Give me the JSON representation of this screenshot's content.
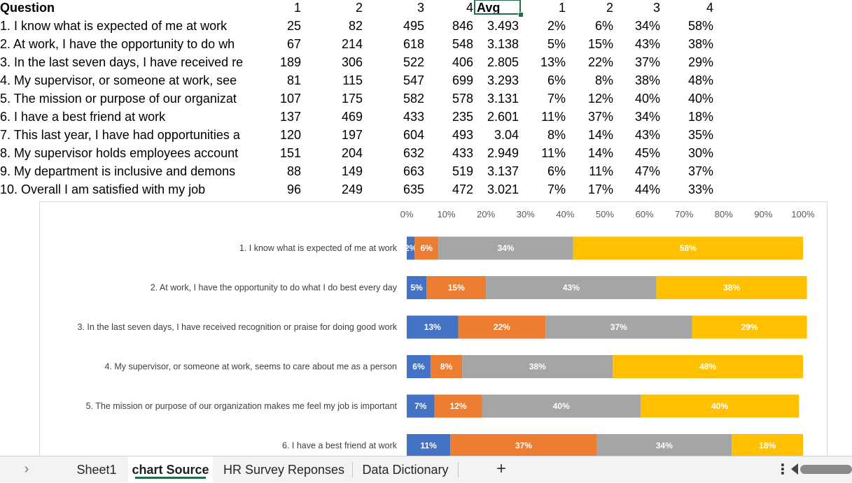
{
  "table": {
    "headers": [
      "Question",
      "1",
      "2",
      "3",
      "4",
      "Avg",
      "1",
      "2",
      "3",
      "4"
    ],
    "rows": [
      {
        "q": "1. I know what is expected of me at work",
        "c1": "25",
        "c2": "82",
        "c3": "495",
        "c4": "846",
        "avg": "3.493",
        "p1": "2%",
        "p2": "6%",
        "p3": "34%",
        "p4": "58%"
      },
      {
        "q": "2. At work, I have the opportunity to do wh",
        "c1": "67",
        "c2": "214",
        "c3": "618",
        "c4": "548",
        "avg": "3.138",
        "p1": "5%",
        "p2": "15%",
        "p3": "43%",
        "p4": "38%"
      },
      {
        "q": "3. In the last seven days, I have received re",
        "c1": "189",
        "c2": "306",
        "c3": "522",
        "c4": "406",
        "avg": "2.805",
        "p1": "13%",
        "p2": "22%",
        "p3": "37%",
        "p4": "29%"
      },
      {
        "q": "4. My supervisor, or someone at work, see",
        "c1": "81",
        "c2": "115",
        "c3": "547",
        "c4": "699",
        "avg": "3.293",
        "p1": "6%",
        "p2": "8%",
        "p3": "38%",
        "p4": "48%"
      },
      {
        "q": "5. The mission or purpose of our organizat",
        "c1": "107",
        "c2": "175",
        "c3": "582",
        "c4": "578",
        "avg": "3.131",
        "p1": "7%",
        "p2": "12%",
        "p3": "40%",
        "p4": "40%"
      },
      {
        "q": "6. I have a best friend at work",
        "c1": "137",
        "c2": "469",
        "c3": "433",
        "c4": "235",
        "avg": "2.601",
        "p1": "11%",
        "p2": "37%",
        "p3": "34%",
        "p4": "18%"
      },
      {
        "q": "7. This last year, I have had opportunities a",
        "c1": "120",
        "c2": "197",
        "c3": "604",
        "c4": "493",
        "avg": "3.04",
        "p1": "8%",
        "p2": "14%",
        "p3": "43%",
        "p4": "35%"
      },
      {
        "q": "8. My supervisor holds employees account",
        "c1": "151",
        "c2": "204",
        "c3": "632",
        "c4": "433",
        "avg": "2.949",
        "p1": "11%",
        "p2": "14%",
        "p3": "45%",
        "p4": "30%"
      },
      {
        "q": "9. My department is inclusive and demons",
        "c1": "88",
        "c2": "149",
        "c3": "663",
        "c4": "519",
        "avg": "3.137",
        "p1": "6%",
        "p2": "11%",
        "p3": "47%",
        "p4": "37%"
      },
      {
        "q": "10. Overall I am satisfied with my job",
        "c1": "96",
        "c2": "249",
        "c3": "635",
        "c4": "472",
        "avg": "3.021",
        "p1": "7%",
        "p2": "17%",
        "p3": "44%",
        "p4": "33%"
      }
    ]
  },
  "chart_data": {
    "type": "bar",
    "orientation": "horizontal",
    "stacked": "100%",
    "title": "",
    "xlabel": "",
    "ylabel": "",
    "xlim": [
      0,
      100
    ],
    "x_ticks": [
      "0%",
      "10%",
      "20%",
      "30%",
      "40%",
      "50%",
      "60%",
      "70%",
      "80%",
      "90%",
      "100%"
    ],
    "x_tick_position": "top",
    "grid": false,
    "legend": "none",
    "categories": [
      "1. I know what is expected of me at work",
      "2. At work, I have the opportunity to do what I do best every day",
      "3. In the last seven days, I have received recognition or praise for doing good work",
      "4. My supervisor, or someone at work, seems to care about me as a person",
      "5. The mission or purpose of our organization makes me feel my job is important",
      "6. I have a best friend at work"
    ],
    "series": [
      {
        "color": "#4472c4",
        "values": [
          2,
          5,
          13,
          6,
          7,
          11
        ],
        "labels": [
          "2%",
          "5%",
          "13%",
          "6%",
          "7%",
          "11%"
        ]
      },
      {
        "color": "#ed7d31",
        "values": [
          6,
          15,
          22,
          8,
          12,
          37
        ],
        "labels": [
          "6%",
          "15%",
          "22%",
          "8%",
          "12%",
          "37%"
        ]
      },
      {
        "color": "#a5a5a5",
        "values": [
          34,
          43,
          37,
          38,
          40,
          34
        ],
        "labels": [
          "34%",
          "43%",
          "37%",
          "38%",
          "40%",
          "34%"
        ]
      },
      {
        "color": "#ffc000",
        "values": [
          58,
          38,
          29,
          48,
          40,
          18
        ],
        "labels": [
          "58%",
          "38%",
          "29%",
          "48%",
          "40%",
          "18%"
        ]
      }
    ]
  },
  "tabs": {
    "nav_icon": "chevron-right-icon",
    "items": [
      "Sheet1",
      "chart Source",
      "HR Survey Reponses",
      "Data Dictionary"
    ],
    "active_index": 1,
    "add_label": "+",
    "more_label": "⋮",
    "accent": "#1e7145"
  }
}
